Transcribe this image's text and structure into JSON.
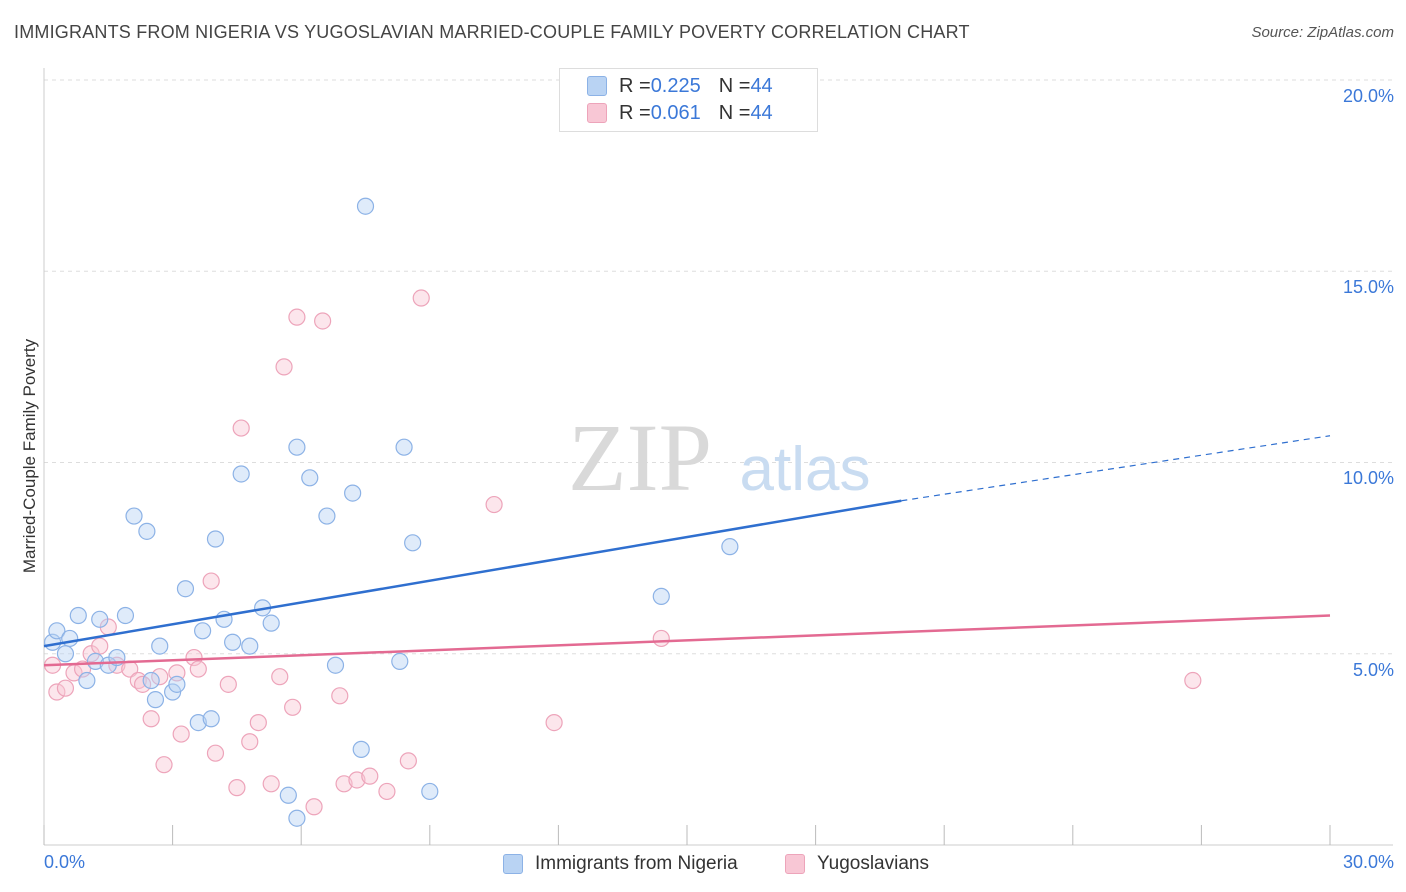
{
  "title": "IMMIGRANTS FROM NIGERIA VS YUGOSLAVIAN MARRIED-COUPLE FAMILY POVERTY CORRELATION CHART",
  "source": "Source: ZipAtlas.com",
  "watermark": {
    "zip": "ZIP",
    "atlas": "atlas"
  },
  "legend": {
    "blue": {
      "r_label": "R = ",
      "r_value": "0.225",
      "n_label": "N = ",
      "n_value": "44"
    },
    "pink": {
      "r_label": "R = ",
      "r_value": "0.061",
      "n_label": "N = ",
      "n_value": "44"
    }
  },
  "colors": {
    "blue": "#8cb2e6",
    "blue_line": "#2f6fcf",
    "pink": "#eda4ba",
    "pink_line": "#e36a92",
    "tick_text": "#3b78d8",
    "grid": "#dddddd"
  },
  "chart_data": {
    "type": "scatter",
    "title": "IMMIGRANTS FROM NIGERIA VS YUGOSLAVIAN MARRIED-COUPLE FAMILY POVERTY CORRELATION CHART",
    "xlabel": "",
    "ylabel": "Married-Couple Family Poverty",
    "xlim": [
      0,
      30
    ],
    "ylim": [
      0,
      20
    ],
    "x_tick_labels": [
      "0.0%",
      "30.0%"
    ],
    "y_ticks": [
      5,
      10,
      15,
      20
    ],
    "y_tick_labels": [
      "5.0%",
      "10.0%",
      "15.0%",
      "20.0%"
    ],
    "series": [
      {
        "name": "Immigrants from Nigeria",
        "r": 0.225,
        "n": 44,
        "trend": {
          "x0": 0,
          "y0": 5.2,
          "x1": 20,
          "y1": 9.0,
          "dash_to_x": 30,
          "dash_to_y": 10.7
        },
        "points": [
          [
            0.2,
            5.3
          ],
          [
            0.3,
            5.6
          ],
          [
            0.5,
            5.0
          ],
          [
            0.6,
            5.4
          ],
          [
            0.8,
            6.0
          ],
          [
            1.0,
            4.3
          ],
          [
            1.2,
            4.8
          ],
          [
            1.3,
            5.9
          ],
          [
            1.5,
            4.7
          ],
          [
            1.7,
            4.9
          ],
          [
            1.9,
            6.0
          ],
          [
            2.1,
            8.6
          ],
          [
            2.4,
            8.2
          ],
          [
            2.5,
            4.3
          ],
          [
            2.6,
            3.8
          ],
          [
            2.7,
            5.2
          ],
          [
            3.0,
            4.0
          ],
          [
            3.1,
            4.2
          ],
          [
            3.3,
            6.7
          ],
          [
            3.6,
            3.2
          ],
          [
            3.7,
            5.6
          ],
          [
            3.9,
            3.3
          ],
          [
            4.0,
            8.0
          ],
          [
            4.2,
            5.9
          ],
          [
            4.4,
            5.3
          ],
          [
            4.6,
            9.7
          ],
          [
            4.8,
            5.2
          ],
          [
            5.1,
            6.2
          ],
          [
            5.3,
            5.8
          ],
          [
            5.7,
            1.3
          ],
          [
            5.9,
            0.7
          ],
          [
            5.9,
            10.4
          ],
          [
            6.2,
            9.6
          ],
          [
            6.6,
            8.6
          ],
          [
            6.8,
            4.7
          ],
          [
            7.2,
            9.2
          ],
          [
            7.4,
            2.5
          ],
          [
            7.5,
            16.7
          ],
          [
            8.3,
            4.8
          ],
          [
            8.4,
            10.4
          ],
          [
            8.6,
            7.9
          ],
          [
            9.0,
            1.4
          ],
          [
            14.4,
            6.5
          ],
          [
            16.0,
            7.8
          ]
        ]
      },
      {
        "name": "Yugoslavians",
        "r": 0.061,
        "n": 44,
        "trend": {
          "x0": 0,
          "y0": 4.7,
          "x1": 30,
          "y1": 6.0
        },
        "points": [
          [
            0.2,
            4.7
          ],
          [
            0.3,
            4.0
          ],
          [
            0.5,
            4.1
          ],
          [
            0.7,
            4.5
          ],
          [
            0.9,
            4.6
          ],
          [
            1.1,
            5.0
          ],
          [
            1.3,
            5.2
          ],
          [
            1.5,
            5.7
          ],
          [
            1.7,
            4.7
          ],
          [
            2.0,
            4.6
          ],
          [
            2.2,
            4.3
          ],
          [
            2.3,
            4.2
          ],
          [
            2.5,
            3.3
          ],
          [
            2.7,
            4.4
          ],
          [
            2.8,
            2.1
          ],
          [
            3.1,
            4.5
          ],
          [
            3.2,
            2.9
          ],
          [
            3.5,
            4.9
          ],
          [
            3.6,
            4.6
          ],
          [
            3.9,
            6.9
          ],
          [
            4.0,
            2.4
          ],
          [
            4.3,
            4.2
          ],
          [
            4.5,
            1.5
          ],
          [
            4.6,
            10.9
          ],
          [
            4.8,
            2.7
          ],
          [
            5.0,
            3.2
          ],
          [
            5.3,
            1.6
          ],
          [
            5.5,
            4.4
          ],
          [
            5.6,
            12.5
          ],
          [
            5.8,
            3.6
          ],
          [
            5.9,
            13.8
          ],
          [
            6.3,
            1.0
          ],
          [
            6.5,
            13.7
          ],
          [
            6.9,
            3.9
          ],
          [
            7.0,
            1.6
          ],
          [
            7.3,
            1.7
          ],
          [
            7.6,
            1.8
          ],
          [
            8.0,
            1.4
          ],
          [
            8.5,
            2.2
          ],
          [
            8.8,
            14.3
          ],
          [
            10.5,
            8.9
          ],
          [
            11.9,
            3.2
          ],
          [
            14.4,
            5.4
          ],
          [
            26.8,
            4.3
          ]
        ]
      }
    ]
  }
}
